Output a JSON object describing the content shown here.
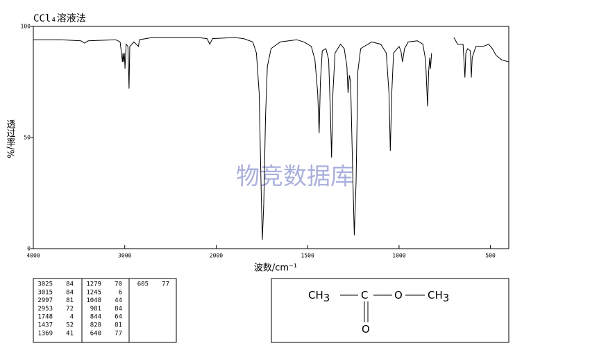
{
  "chart_data": {
    "type": "line",
    "title": "CCl₄溶液法",
    "xlabel": "波数/cm⁻¹",
    "ylabel": "透过率/%",
    "watermark": "物竞数据库",
    "xlim": [
      4000,
      400
    ],
    "xscale_break": 2000,
    "xticks": [
      4000,
      3000,
      2000,
      1500,
      1000,
      500
    ],
    "ylim": [
      0,
      100
    ],
    "yticks": [
      0,
      50,
      100
    ],
    "color": "#000000",
    "x": [
      4000,
      3700,
      3480,
      3440,
      3400,
      3100,
      3050,
      3025,
      3020,
      3015,
      3005,
      2997,
      2985,
      2965,
      2953,
      2945,
      2900,
      2850,
      2840,
      2700,
      2200,
      2100,
      2070,
      2040,
      1900,
      1850,
      1800,
      1780,
      1765,
      1755,
      1748,
      1740,
      1730,
      1720,
      1700,
      1650,
      1560,
      1520,
      1480,
      1460,
      1445,
      1437,
      1430,
      1420,
      1400,
      1385,
      1375,
      1369,
      1362,
      1350,
      1320,
      1300,
      1285,
      1279,
      1272,
      1265,
      1255,
      1245,
      1235,
      1225,
      1210,
      1150,
      1100,
      1070,
      1055,
      1048,
      1040,
      1030,
      1000,
      990,
      981,
      970,
      950,
      900,
      870,
      855,
      844,
      838,
      832,
      828,
      822,
      760,
      700,
      680,
      650,
      640,
      635,
      625,
      610,
      605,
      600,
      580,
      540,
      510,
      490,
      470,
      440,
      400
    ],
    "values": [
      94,
      94,
      93.5,
      92.5,
      93.5,
      94,
      93,
      84,
      88,
      84,
      88,
      81,
      92,
      91,
      72,
      91,
      93,
      91,
      94,
      95,
      95,
      94.5,
      92,
      94.5,
      95,
      94.5,
      93,
      88,
      70,
      30,
      4,
      20,
      60,
      82,
      90,
      93,
      94,
      93,
      91,
      85,
      70,
      52,
      75,
      89,
      90,
      85,
      60,
      41,
      70,
      88,
      92,
      90,
      82,
      70,
      78,
      75,
      40,
      6,
      30,
      80,
      90,
      93,
      92,
      88,
      70,
      44,
      70,
      88,
      91,
      89,
      84,
      90,
      93,
      93.5,
      92,
      85,
      64,
      80,
      86,
      81,
      88,
      null,
      95,
      92,
      92,
      77,
      88,
      90,
      89,
      77,
      86,
      91,
      91,
      92,
      90,
      87,
      85,
      84
    ]
  },
  "peak_table": [
    [
      [
        3025,
        84
      ],
      [
        3015,
        84
      ],
      [
        2997,
        81
      ],
      [
        2953,
        72
      ],
      [
        1748,
        4
      ],
      [
        1437,
        52
      ],
      [
        1369,
        41
      ]
    ],
    [
      [
        1279,
        70
      ],
      [
        1245,
        6
      ],
      [
        1048,
        44
      ],
      [
        981,
        84
      ],
      [
        844,
        64
      ],
      [
        828,
        81
      ],
      [
        640,
        77
      ]
    ],
    [
      [
        605,
        77
      ]
    ]
  ],
  "structure": {
    "atoms": [
      {
        "label": "CH",
        "sub": "3"
      },
      {
        "label": "C"
      },
      {
        "label": "O"
      },
      {
        "label": "CH",
        "sub": "3"
      },
      {
        "label": "O"
      }
    ]
  }
}
